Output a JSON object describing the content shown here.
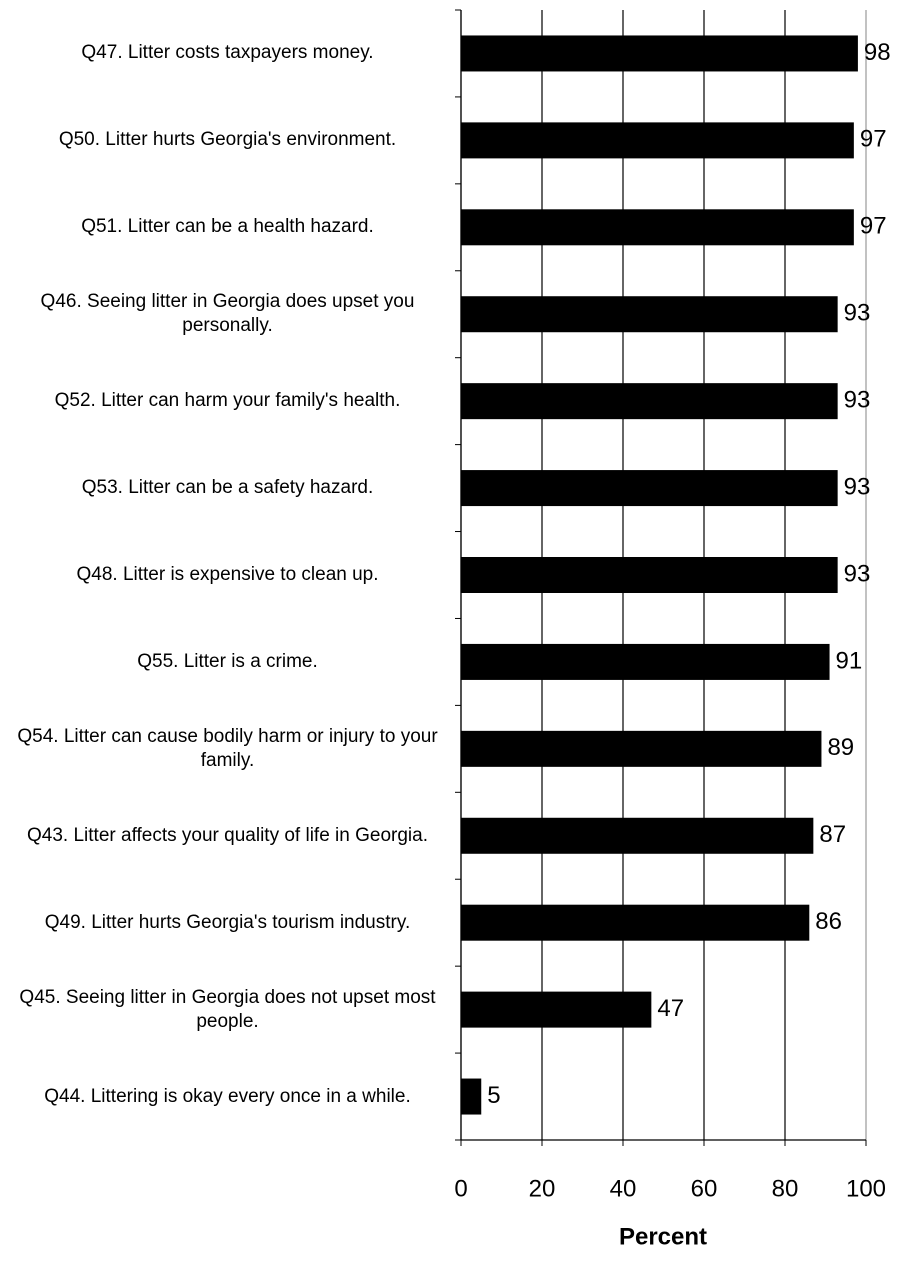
{
  "chart_data": {
    "type": "bar",
    "orientation": "horizontal",
    "categories": [
      "Q47. Litter costs taxpayers money.",
      "Q50. Litter hurts Georgia's environment.",
      "Q51. Litter can be a health hazard.",
      "Q46. Seeing litter in Georgia does upset you personally.",
      "Q52. Litter can harm your family's health.",
      "Q53. Litter can be a safety hazard.",
      "Q48. Litter is expensive to clean up.",
      "Q55. Litter is a crime.",
      "Q54. Litter can cause bodily harm or injury to your family.",
      "Q43. Litter affects your quality of life in Georgia.",
      "Q49. Litter hurts Georgia's tourism industry.",
      "Q45. Seeing litter in Georgia does not upset most people.",
      "Q44. Littering is okay every once in a while."
    ],
    "values": [
      98,
      97,
      97,
      93,
      93,
      93,
      93,
      91,
      89,
      87,
      86,
      47,
      5
    ],
    "color": "#000000",
    "xlabel": "Percent",
    "xlim": [
      0,
      100
    ],
    "xticks": [
      0,
      20,
      40,
      60,
      80,
      100
    ],
    "grid": true
  }
}
